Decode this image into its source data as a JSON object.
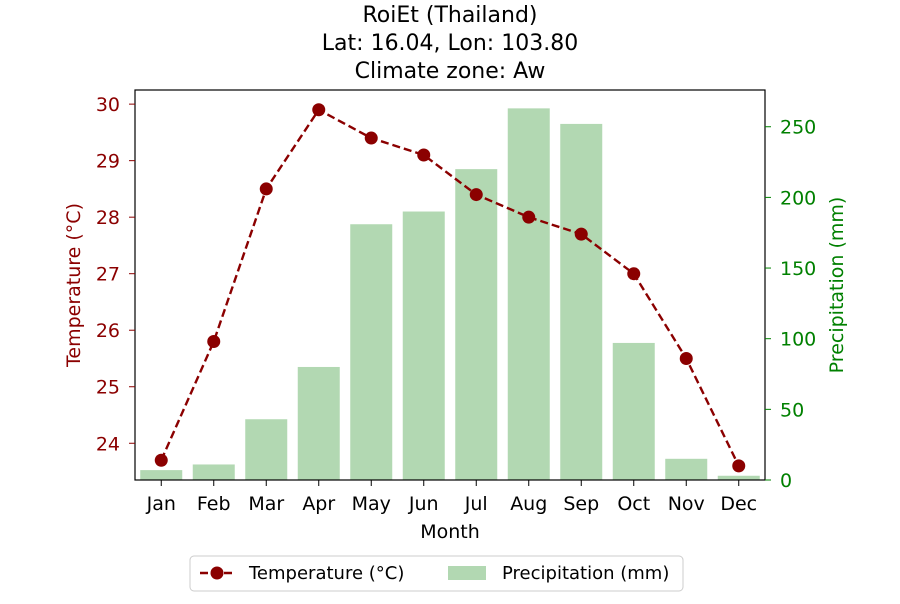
{
  "chart_data": {
    "type": "bar+line",
    "title": [
      "RoiEt (Thailand)",
      "Lat: 16.04, Lon: 103.80",
      "Climate zone: Aw"
    ],
    "xlabel": "Month",
    "ylabel_left": "Temperature (°C)",
    "ylabel_right": "Precipitation (mm)",
    "categories": [
      "Jan",
      "Feb",
      "Mar",
      "Apr",
      "May",
      "Jun",
      "Jul",
      "Aug",
      "Sep",
      "Oct",
      "Nov",
      "Dec"
    ],
    "series": [
      {
        "name": "Temperature (°C)",
        "type": "line",
        "axis": "left",
        "values": [
          23.7,
          25.8,
          28.5,
          29.9,
          29.4,
          29.1,
          28.4,
          28.0,
          27.7,
          27.0,
          25.5,
          23.6
        ]
      },
      {
        "name": "Precipitation (mm)",
        "type": "bar",
        "axis": "right",
        "values": [
          7,
          11,
          43,
          80,
          181,
          190,
          220,
          263,
          252,
          97,
          15,
          3
        ]
      }
    ],
    "ylim_left": [
      23.35,
      30.25
    ],
    "ylim_right": [
      0,
      276
    ],
    "yticks_left": [
      "24",
      "25",
      "26",
      "27",
      "28",
      "29",
      "30"
    ],
    "yticks_right": [
      "0",
      "50",
      "100",
      "150",
      "200",
      "250"
    ],
    "colors": {
      "temperature": "#8b0000",
      "precipitation": "#b2d8b2",
      "left_axis": "#8b0000",
      "right_axis": "#008000"
    },
    "legend_position": "bottom-center",
    "grid": false
  }
}
